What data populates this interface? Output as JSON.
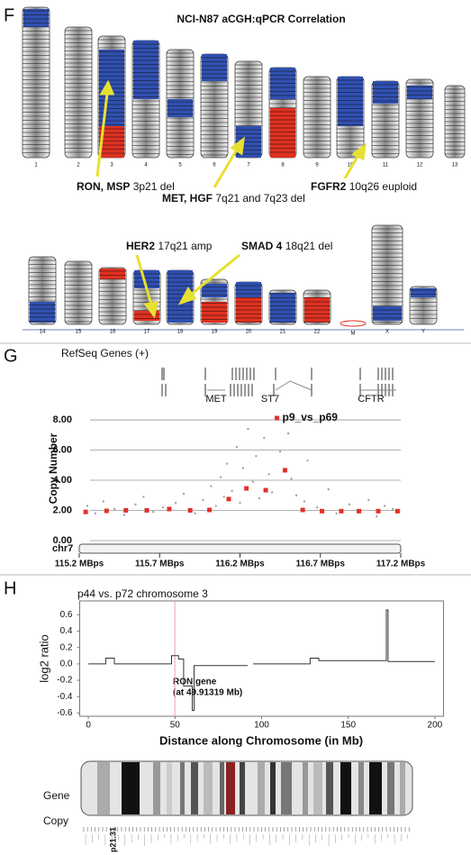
{
  "panel_labels": [
    "F",
    "G",
    "H"
  ],
  "karyotype": {
    "title": "NCI-N87 aCGH:qPCR  Correlation",
    "chromosomes": [
      "1",
      "2",
      "3",
      "4",
      "5",
      "6",
      "7",
      "8",
      "9",
      "10",
      "11",
      "12",
      "13",
      "14",
      "15",
      "16",
      "17",
      "18",
      "19",
      "20",
      "21",
      "22",
      "M",
      "X",
      "Y"
    ],
    "annotations": [
      {
        "gene": "RON, MSP",
        "text": "3p21 del"
      },
      {
        "gene": "MET, HGF",
        "text": "7q21 and 7q23 del"
      },
      {
        "gene": "FGFR2",
        "text": "10q26 euploid"
      },
      {
        "gene": "HER2",
        "text": "17q21 amp"
      },
      {
        "gene": "SMAD 4",
        "text": "18q21 del"
      }
    ]
  },
  "chart_data": [
    {
      "type": "scatter",
      "track_label": "RefSeq Genes (+)",
      "genes": [
        "MET",
        "ST7",
        "CFTR"
      ],
      "y_label": "Copy Number",
      "x_axis_name": "chr7",
      "xlim": [
        115.2,
        117.2
      ],
      "xticks": [
        {
          "value": 115.2,
          "label": "115.2 MBps"
        },
        {
          "value": 115.7,
          "label": "115.7 MBps"
        },
        {
          "value": 116.2,
          "label": "116.2 MBps"
        },
        {
          "value": 116.7,
          "label": "116.7 MBps"
        },
        {
          "value": 117.2,
          "label": "117.2 MBps"
        }
      ],
      "ylim": [
        0,
        8.6
      ],
      "yticks": [
        {
          "value": 0,
          "label": "0.00"
        },
        {
          "value": 2,
          "label": "2.00"
        },
        {
          "value": 4,
          "label": "4.00"
        },
        {
          "value": 6,
          "label": "6.00"
        },
        {
          "value": 8,
          "label": "8.00"
        }
      ],
      "grid": true,
      "series": [
        {
          "color": "#9a9a9a",
          "x": [
            115.25,
            115.3,
            115.35,
            115.42,
            115.48,
            115.55,
            115.6,
            115.66,
            115.72,
            115.8,
            115.85,
            115.92,
            115.97,
            116.02,
            116.05,
            116.08,
            116.1,
            116.12,
            116.15,
            116.18,
            116.2,
            116.22,
            116.25,
            116.28,
            116.3,
            116.32,
            116.35,
            116.38,
            116.4,
            116.45,
            116.5,
            116.52,
            116.55,
            116.6,
            116.62,
            116.68,
            116.75,
            116.8,
            116.88,
            116.95,
            117.0,
            117.05,
            117.1,
            117.15
          ],
          "values": [
            2.3,
            1.8,
            2.6,
            2.1,
            1.7,
            2.4,
            2.9,
            1.9,
            2.2,
            2.5,
            3.1,
            1.8,
            2.7,
            3.6,
            2.3,
            4.2,
            2.9,
            5.1,
            3.3,
            6.2,
            2.5,
            4.8,
            7.4,
            3.9,
            5.6,
            2.8,
            6.8,
            4.4,
            3.2,
            5.9,
            7.1,
            4.1,
            3.0,
            2.6,
            5.3,
            2.2,
            3.4,
            1.8,
            2.4,
            2.0,
            2.7,
            1.6,
            2.3,
            2.1
          ]
        },
        {
          "name": "p9_vs_p69",
          "color": "#e0322b",
          "x": [
            115.24,
            115.37,
            115.49,
            115.62,
            115.76,
            115.89,
            116.01,
            116.13,
            116.24,
            116.36,
            116.43,
            116.48,
            116.59,
            116.71,
            116.83,
            116.94,
            117.06,
            117.18
          ],
          "values": [
            1.9,
            1.97,
            2.0,
            2.0,
            2.09,
            2.0,
            2.03,
            2.75,
            3.46,
            3.34,
            8.12,
            4.66,
            2.03,
            1.95,
            1.95,
            1.95,
            1.95,
            1.95
          ]
        }
      ]
    },
    {
      "type": "line",
      "title": "p44 vs. p72 chromosome 3",
      "y_label": "log2 ratio",
      "x_label": "Distance along Chromosome (in Mb)",
      "annotation": [
        "RON gene",
        "(at 49.91319 Mb)"
      ],
      "marker_x": 49.91319,
      "xlim": [
        -5,
        205
      ],
      "xticks": [
        0,
        50,
        100,
        150,
        200
      ],
      "ylim": [
        -0.64,
        0.77
      ],
      "yticks": [
        0.6,
        0.4,
        0.2,
        {
          "value": 0,
          "label": "0.0"
        },
        -0.2,
        -0.4,
        -0.6
      ],
      "color": "#333333",
      "x": [
        0,
        10,
        10,
        15,
        15,
        48,
        48,
        52,
        52,
        55,
        55,
        60,
        60,
        61,
        61,
        92,
        93,
        95,
        95,
        128,
        128,
        133,
        133,
        172,
        172,
        173,
        173,
        200
      ],
      "values": [
        0,
        0,
        0.07,
        0.07,
        0,
        0,
        0.1,
        0.1,
        0.06,
        0.06,
        -0.27,
        -0.27,
        -0.57,
        -0.57,
        -0.02,
        -0.02,
        null,
        0,
        0,
        0,
        0.07,
        0.07,
        0.04,
        0.04,
        0.66,
        0.66,
        0.03,
        0.03
      ],
      "tracks": [
        "Gene",
        "Copy"
      ],
      "band_label": "p21.31"
    }
  ]
}
